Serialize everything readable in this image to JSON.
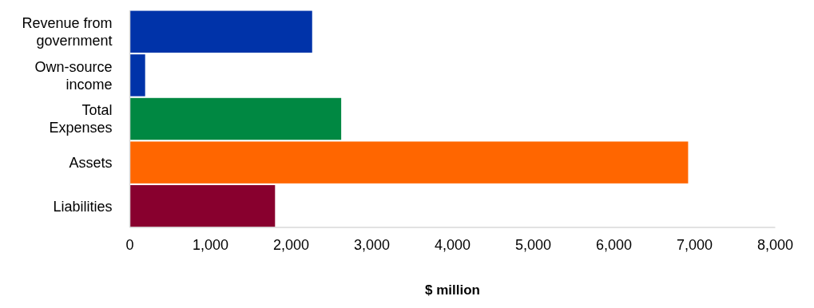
{
  "chart_data": {
    "type": "bar",
    "orientation": "horizontal",
    "categories": [
      "Revenue from government",
      "Own-source income",
      "Total Expenses",
      "Assets",
      "Liabilities"
    ],
    "values": [
      2260,
      190,
      2620,
      6920,
      1800
    ],
    "colors": [
      "#0033a9",
      "#0033a9",
      "#008842",
      "#ff6600",
      "#88002e"
    ],
    "xlim": [
      0,
      8000
    ],
    "xticks": [
      0,
      {
        "value": 1000,
        "label": "1,000"
      },
      {
        "value": 2000,
        "label": "2,000"
      },
      {
        "value": 3000,
        "label": "3,000"
      },
      {
        "value": 4000,
        "label": "4,000"
      },
      {
        "value": 5000,
        "label": "5,000"
      },
      {
        "value": 6000,
        "label": "6,000"
      },
      {
        "value": 7000,
        "label": "7,000"
      },
      {
        "value": 8000,
        "label": "8,000"
      }
    ],
    "xlabel": "$ million"
  }
}
